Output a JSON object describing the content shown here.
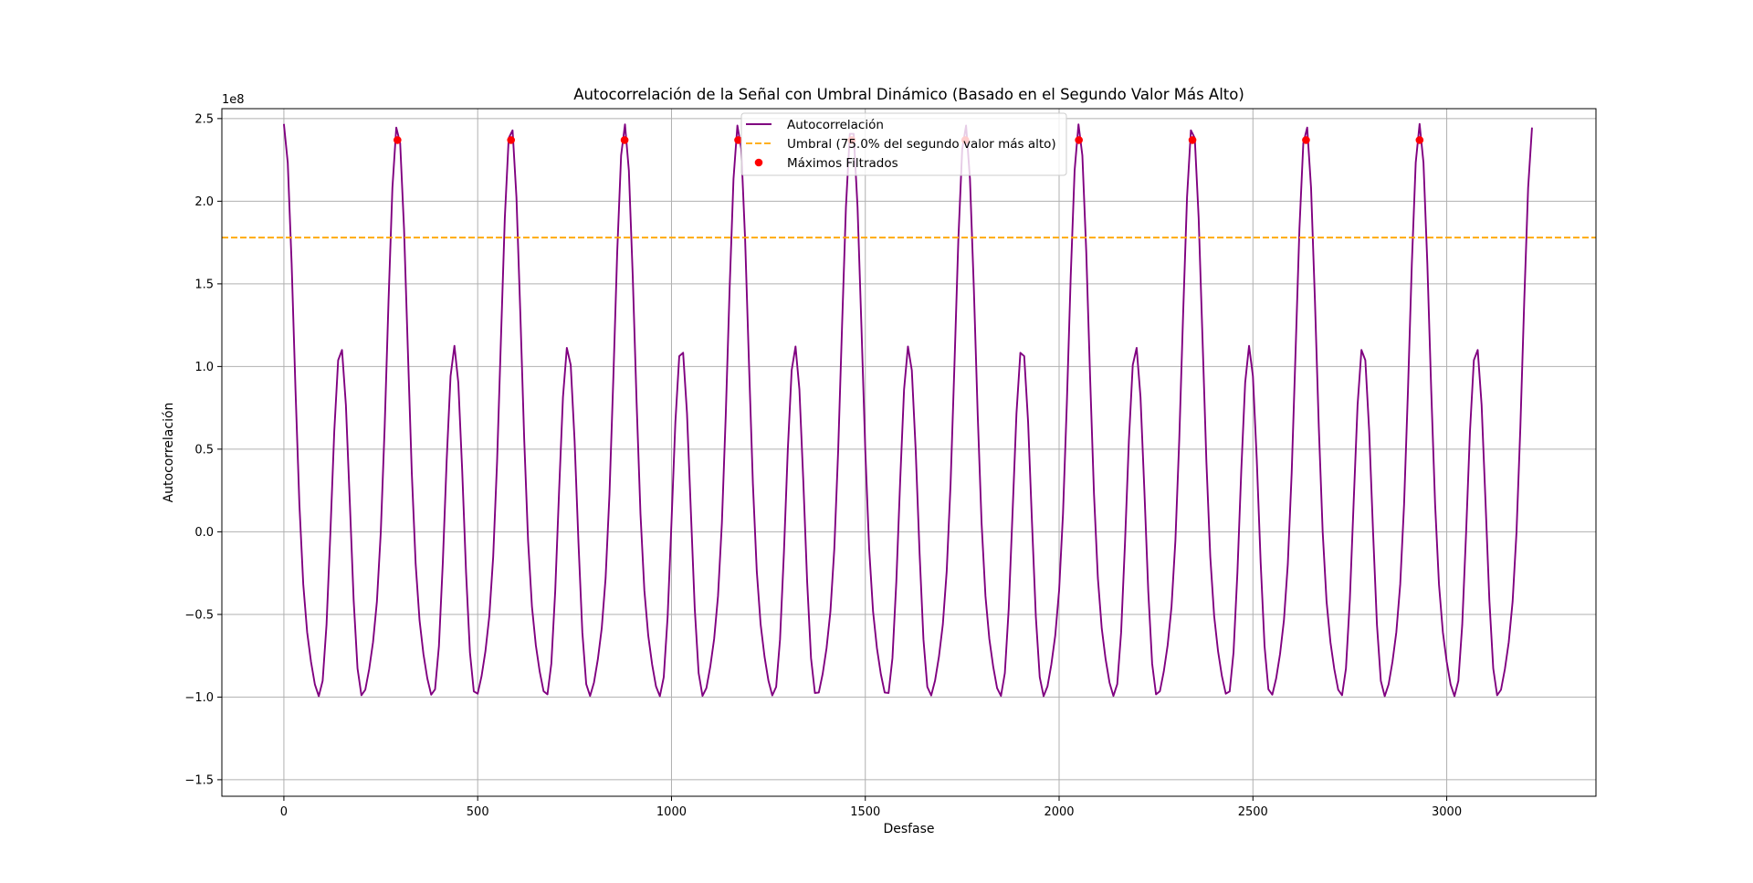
{
  "chart_data": {
    "type": "line",
    "title": "Autocorrelación de la Señal con Umbral Dinámico (Basado en el Segundo Valor Más Alto)",
    "xlabel": "Desfase",
    "ylabel": "Autocorrelación",
    "y_offset_label": "1e8",
    "xlim": [
      -160,
      3385
    ],
    "ylim": [
      -1.6,
      2.56
    ],
    "x_ticks": [
      0,
      500,
      1000,
      1500,
      2000,
      2500,
      3000
    ],
    "x_tick_labels": [
      "0",
      "500",
      "1000",
      "1500",
      "2000",
      "2500",
      "3000"
    ],
    "y_ticks": [
      -1.5,
      -1.0,
      -0.5,
      0.0,
      0.5,
      1.0,
      1.5,
      2.0,
      2.5
    ],
    "y_tick_labels": [
      "−1.5",
      "−1.0",
      "−0.5",
      "0.0",
      "0.5",
      "1.0",
      "1.5",
      "2.0",
      "2.5"
    ],
    "grid": true,
    "legend_placement": "top-center",
    "series": [
      {
        "name": "Autocorrelación",
        "kind": "line",
        "color": "#800080",
        "x_start": 0,
        "x_end": 3220,
        "x_step": 10,
        "period": 293,
        "peak": 2.37,
        "secondary_peak": 1.22,
        "trough": -1.41
      },
      {
        "name": "Umbral (75.0% del segundo valor más alto)",
        "kind": "hline",
        "color": "#FFA500",
        "y": 1.78
      },
      {
        "name": "Máximos Filtrados",
        "kind": "scatter",
        "color": "#FF0000",
        "x": [
          293,
          586,
          879,
          1172,
          1465,
          1758,
          2051,
          2344,
          2637,
          2930
        ],
        "y": [
          2.37,
          2.37,
          2.37,
          2.37,
          2.37,
          2.37,
          2.37,
          2.37,
          2.37,
          2.37
        ]
      }
    ]
  }
}
